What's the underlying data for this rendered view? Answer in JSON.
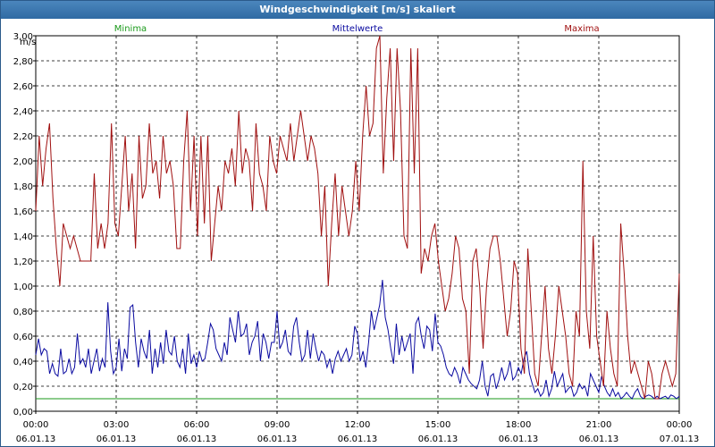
{
  "window": {
    "title": "Windgeschwindigkeit [m/s] skaliert"
  },
  "chart_data": {
    "type": "line",
    "title": "Windgeschwindigkeit [m/s] skaliert",
    "ylabel": "m/s",
    "xlabel": "",
    "ylim": [
      0,
      3.0
    ],
    "xlim": [
      0,
      24
    ],
    "grid": true,
    "legend_placement": "top",
    "y_ticks": [
      "0,00",
      "0,20",
      "0,40",
      "0,60",
      "0,80",
      "1,00",
      "1,20",
      "1,40",
      "1,60",
      "1,80",
      "2,00",
      "2,20",
      "2,40",
      "2,60",
      "2,80",
      "3,00"
    ],
    "x_ticks": [
      {
        "time": "00:00",
        "date": "06.01.13"
      },
      {
        "time": "03:00",
        "date": "06.01.13"
      },
      {
        "time": "06:00",
        "date": "06.01.13"
      },
      {
        "time": "09:00",
        "date": "06.01.13"
      },
      {
        "time": "12:00",
        "date": "06.01.13"
      },
      {
        "time": "15:00",
        "date": "06.01.13"
      },
      {
        "time": "18:00",
        "date": "06.01.13"
      },
      {
        "time": "21:00",
        "date": "06.01.13"
      },
      {
        "time": "00:00",
        "date": "07.01.13"
      }
    ],
    "series": [
      {
        "name": "Minima",
        "color": "#1a9a1a",
        "values": [
          0.1,
          0.1
        ]
      },
      {
        "name": "Mittelwerte",
        "color": "#0a0aa0",
        "values": [
          0.45,
          0.58,
          0.45,
          0.5,
          0.48,
          0.3,
          0.38,
          0.3,
          0.28,
          0.5,
          0.3,
          0.32,
          0.42,
          0.3,
          0.35,
          0.62,
          0.38,
          0.42,
          0.35,
          0.5,
          0.3,
          0.4,
          0.5,
          0.32,
          0.42,
          0.35,
          0.87,
          0.48,
          0.3,
          0.35,
          0.58,
          0.32,
          0.5,
          0.42,
          0.83,
          0.85,
          0.55,
          0.35,
          0.58,
          0.48,
          0.42,
          0.65,
          0.3,
          0.5,
          0.35,
          0.55,
          0.38,
          0.65,
          0.48,
          0.45,
          0.6,
          0.4,
          0.35,
          0.5,
          0.3,
          0.62,
          0.38,
          0.45,
          0.35,
          0.48,
          0.4,
          0.42,
          0.55,
          0.7,
          0.65,
          0.5,
          0.45,
          0.4,
          0.55,
          0.45,
          0.75,
          0.65,
          0.55,
          0.8,
          0.6,
          0.62,
          0.7,
          0.45,
          0.55,
          0.6,
          0.72,
          0.4,
          0.62,
          0.55,
          0.42,
          0.55,
          0.55,
          0.8,
          0.5,
          0.55,
          0.65,
          0.48,
          0.45,
          0.68,
          0.75,
          0.55,
          0.4,
          0.45,
          0.65,
          0.42,
          0.62,
          0.5,
          0.4,
          0.48,
          0.45,
          0.35,
          0.42,
          0.3,
          0.42,
          0.48,
          0.4,
          0.45,
          0.5,
          0.4,
          0.45,
          0.68,
          0.62,
          0.4,
          0.48,
          0.35,
          0.55,
          0.8,
          0.65,
          0.75,
          0.85,
          1.05,
          0.75,
          0.65,
          0.5,
          0.38,
          0.7,
          0.45,
          0.6,
          0.48,
          0.55,
          0.62,
          0.3,
          0.7,
          0.75,
          0.6,
          0.5,
          0.68,
          0.65,
          0.48,
          0.78,
          0.55,
          0.52,
          0.45,
          0.35,
          0.3,
          0.28,
          0.35,
          0.3,
          0.22,
          0.35,
          0.3,
          0.25,
          0.22,
          0.2,
          0.18,
          0.25,
          0.4,
          0.2,
          0.12,
          0.28,
          0.3,
          0.18,
          0.25,
          0.35,
          0.25,
          0.3,
          0.4,
          0.25,
          0.28,
          0.35,
          0.3,
          0.42,
          0.48,
          0.3,
          0.22,
          0.15,
          0.18,
          0.12,
          0.15,
          0.25,
          0.12,
          0.18,
          0.32,
          0.2,
          0.25,
          0.3,
          0.15,
          0.18,
          0.2,
          0.12,
          0.15,
          0.22,
          0.18,
          0.2,
          0.12,
          0.3,
          0.25,
          0.2,
          0.15,
          0.28,
          0.2,
          0.15,
          0.12,
          0.18,
          0.12,
          0.15,
          0.1,
          0.12,
          0.15,
          0.12,
          0.1,
          0.15,
          0.18,
          0.12,
          0.1,
          0.12,
          0.13,
          0.12,
          0.1,
          0.12,
          0.1,
          0.11,
          0.12,
          0.1,
          0.13,
          0.12,
          0.1,
          0.12
        ]
      },
      {
        "name": "Maxima",
        "color": "#a01010",
        "values": [
          1.6,
          2.2,
          1.8,
          2.1,
          2.3,
          1.7,
          1.3,
          1.0,
          1.5,
          1.4,
          1.3,
          1.4,
          1.3,
          1.2,
          1.2,
          1.2,
          1.2,
          1.9,
          1.3,
          1.5,
          1.3,
          1.5,
          2.3,
          1.5,
          1.4,
          1.8,
          2.2,
          1.6,
          1.9,
          1.3,
          2.2,
          1.7,
          1.8,
          2.3,
          1.9,
          2.0,
          1.7,
          2.2,
          1.9,
          2.0,
          1.8,
          1.3,
          1.3,
          2.0,
          2.4,
          1.6,
          2.2,
          1.4,
          2.2,
          1.5,
          2.2,
          1.2,
          1.5,
          1.8,
          1.6,
          2.0,
          1.9,
          2.1,
          1.8,
          2.4,
          1.9,
          2.1,
          2.0,
          1.6,
          2.3,
          1.9,
          1.8,
          1.6,
          2.2,
          2.0,
          1.9,
          2.2,
          2.1,
          2.0,
          2.3,
          2.0,
          2.2,
          2.4,
          2.2,
          2.0,
          2.2,
          2.1,
          1.9,
          1.4,
          1.8,
          1.0,
          1.5,
          1.9,
          1.4,
          1.8,
          1.6,
          1.4,
          1.6,
          2.0,
          1.6,
          2.2,
          2.6,
          2.2,
          2.3,
          2.9,
          3.0,
          1.9,
          2.5,
          2.9,
          2.0,
          2.9,
          2.4,
          1.4,
          1.3,
          2.9,
          1.9,
          2.9,
          1.1,
          1.3,
          1.2,
          1.4,
          1.5,
          1.2,
          1.0,
          0.8,
          0.9,
          1.1,
          1.4,
          1.3,
          0.9,
          0.8,
          0.3,
          1.2,
          1.3,
          1.0,
          0.5,
          1.0,
          1.3,
          1.4,
          1.4,
          1.2,
          0.9,
          0.6,
          0.8,
          1.2,
          1.1,
          0.5,
          0.3,
          1.3,
          0.8,
          0.3,
          0.2,
          0.6,
          1.0,
          0.5,
          0.3,
          0.6,
          1.0,
          0.8,
          0.6,
          0.3,
          0.2,
          0.8,
          0.6,
          2.0,
          0.8,
          0.5,
          1.4,
          0.6,
          0.4,
          0.2,
          0.8,
          0.5,
          0.3,
          0.2,
          1.5,
          1.1,
          0.6,
          0.3,
          0.4,
          0.3,
          0.2,
          0.1,
          0.4,
          0.3,
          0.1,
          0.1,
          0.3,
          0.4,
          0.3,
          0.2,
          0.3,
          1.1
        ]
      }
    ]
  }
}
